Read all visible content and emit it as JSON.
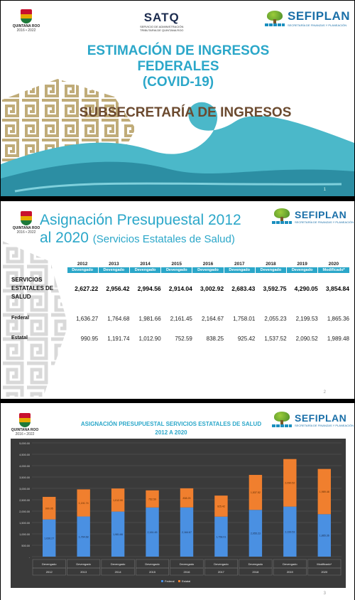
{
  "logos": {
    "qroo_name": "QUINTANA ROO",
    "qroo_years": "2016 • 2022",
    "satq_name": "SATQ",
    "satq_sub1": "SERVICIO DE ADMINISTRACIÓN",
    "satq_sub2": "TRIBUTARIA DE QUINTANA ROO",
    "sefiplan_name": "SEFIPLAN",
    "sefiplan_sub": "SECRETARÍA DE FINANZAS Y PLANEACIÓN"
  },
  "slide1": {
    "title_line1": "ESTIMACIÓN DE INGRESOS",
    "title_line2": "FEDERALES",
    "title_line3": "(COVID-19)",
    "subtitle": "SUBSECRETARÍA DE INGRESOS",
    "page": "1"
  },
  "slide2": {
    "title_line1": "Asignación Presupuestal 2012",
    "title_line2": "al 2020",
    "title_paren": "(Servicios Estatales de Salud)",
    "page": "2",
    "years": [
      "2012",
      "2013",
      "2014",
      "2015",
      "2016",
      "2017",
      "2018",
      "2019",
      "2020"
    ],
    "status": [
      "Devengado",
      "Devengado",
      "Devengado",
      "Devengado",
      "Devengado",
      "Devengado",
      "Devengado",
      "Devengado",
      "Modificado*"
    ],
    "rows": [
      {
        "label": "SERVICIOS ESTATALES DE SALUD",
        "values": [
          "2,627.22",
          "2,956.42",
          "2,994.56",
          "2,914.04",
          "3,002.92",
          "2,683.43",
          "3,592.75",
          "4,290.05",
          "3,854.84"
        ]
      },
      {
        "label": "Federal",
        "values": [
          "1,636.27",
          "1,764.68",
          "1,981.66",
          "2,161.45",
          "2,164.67",
          "1,758.01",
          "2,055.23",
          "2,199.53",
          "1,865.36"
        ]
      },
      {
        "label": "Estatal",
        "values": [
          "990.95",
          "1,191.74",
          "1,012.90",
          "752.59",
          "838.25",
          "925.42",
          "1,537.52",
          "2,090.52",
          "1,989.48"
        ]
      }
    ]
  },
  "slide3": {
    "title": "ASIGNACIÓN PRESUPUESTAL SERVICIOS ESTATALES DE SALUD 2012 A 2020",
    "page": "3"
  },
  "colors": {
    "federal": "#4a90e2",
    "estatal": "#f07f2e",
    "accent": "#2ba7c9"
  },
  "chart_data": {
    "type": "bar",
    "stacked": true,
    "title": "ASIGNACIÓN PRESUPUESTAL SERVICIOS ESTATALES DE SALUD 2012 A 2020",
    "categories": [
      "2012",
      "2013",
      "2014",
      "2015",
      "2016",
      "2017",
      "2018",
      "2019",
      "2020"
    ],
    "category_status": [
      "Devengado",
      "Devengado",
      "Devengado",
      "Devengado",
      "Devengado",
      "Devengado",
      "Devengado",
      "Devengado",
      "Modificado*"
    ],
    "series": [
      {
        "name": "Federal",
        "values": [
          1636.27,
          1764.68,
          1981.66,
          2161.45,
          2164.67,
          1758.01,
          2055.23,
          2199.53,
          1865.36
        ],
        "labels": [
          "1,636.27",
          "1,764.68",
          "1,981.66",
          "2,161.45",
          "2,164.67",
          "1,758.01",
          "2,055.23",
          "2,199.53",
          "1,865.36"
        ]
      },
      {
        "name": "Estatal",
        "values": [
          990.95,
          1191.74,
          1012.9,
          752.59,
          838.25,
          925.42,
          1537.52,
          2090.52,
          1989.48
        ],
        "labels": [
          "990.95",
          "1,191.74",
          "1,012.90",
          "752.59",
          "838.25",
          "925.42",
          "1,537.52",
          "2,090.52",
          "1,989.48"
        ]
      }
    ],
    "ylim": [
      0,
      5000
    ],
    "yticks": [
      "-",
      "500.00",
      "1,000.00",
      "1,500.00",
      "2,000.00",
      "2,500.00",
      "3,000.00",
      "3,500.00",
      "4,000.00",
      "4,500.00",
      "5,000.00"
    ],
    "grid": true,
    "legend": "bottom",
    "background": "dark"
  }
}
